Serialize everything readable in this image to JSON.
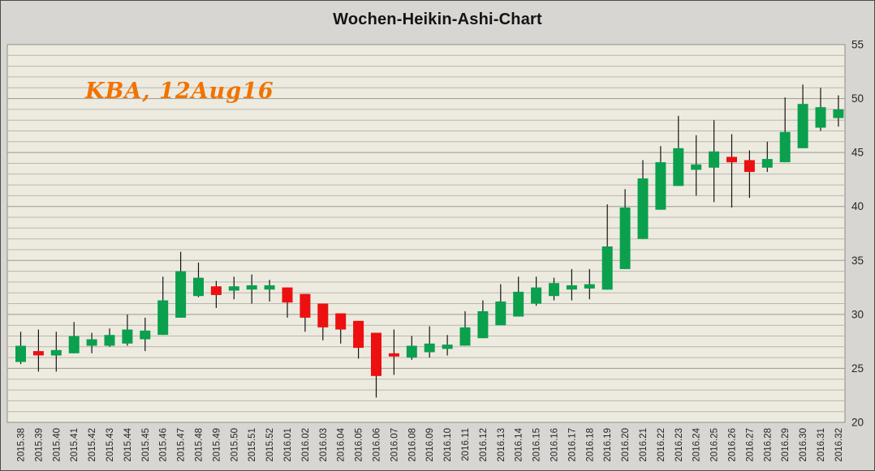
{
  "chart": {
    "title": "Wochen-Heikin-Ashi-Chart",
    "watermark": "KBA, 12Aug16"
  },
  "chart_data": {
    "type": "candlestick",
    "subtype": "weekly-heikin-ashi",
    "title": "Wochen-Heikin-Ashi-Chart",
    "annotation": "KBA, 12Aug16",
    "legend": "none",
    "grid": "horizontal-minor-every-1",
    "y_axis": {
      "position": "right",
      "min": 20,
      "max": 55,
      "major_step": 5,
      "minor_step": 1,
      "ticks": [
        20,
        25,
        30,
        35,
        40,
        45,
        50,
        55
      ]
    },
    "x_categories": [
      "2015.38",
      "2015.39",
      "2015.40",
      "2015.41",
      "2015.42",
      "2015.43",
      "2015.44",
      "2015.45",
      "2015.46",
      "2015.47",
      "2015.48",
      "2015.49",
      "2015.50",
      "2015.51",
      "2015.52",
      "2016.01",
      "2016.02",
      "2016.03",
      "2016.04",
      "2016.05",
      "2016.06",
      "2016.07",
      "2016.08",
      "2016.09",
      "2016.10",
      "2016.11",
      "2016.12",
      "2016.13",
      "2016.14",
      "2016.15",
      "2016.16",
      "2016.17",
      "2016.18",
      "2016.19",
      "2016.20",
      "2016.21",
      "2016.22",
      "2016.23",
      "2016.24",
      "2016.25",
      "2016.26",
      "2016.27",
      "2016.28",
      "2016.29",
      "2016.30",
      "2016.31",
      "2016.32"
    ],
    "candles": [
      {
        "t": "2015.38",
        "o": 25.6,
        "h": 28.4,
        "l": 25.4,
        "c": 27.1
      },
      {
        "t": "2015.39",
        "o": 26.6,
        "h": 28.6,
        "l": 24.7,
        "c": 26.2
      },
      {
        "t": "2015.40",
        "o": 26.2,
        "h": 28.4,
        "l": 24.7,
        "c": 26.7
      },
      {
        "t": "2015.41",
        "o": 26.4,
        "h": 29.3,
        "l": 26.4,
        "c": 28.0
      },
      {
        "t": "2015.42",
        "o": 27.1,
        "h": 28.3,
        "l": 26.4,
        "c": 27.7
      },
      {
        "t": "2015.43",
        "o": 27.1,
        "h": 28.7,
        "l": 27.0,
        "c": 28.1
      },
      {
        "t": "2015.44",
        "o": 27.3,
        "h": 30.0,
        "l": 27.1,
        "c": 28.6
      },
      {
        "t": "2015.45",
        "o": 27.7,
        "h": 29.7,
        "l": 26.6,
        "c": 28.5
      },
      {
        "t": "2015.46",
        "o": 28.1,
        "h": 33.5,
        "l": 28.1,
        "c": 31.3
      },
      {
        "t": "2015.47",
        "o": 29.7,
        "h": 35.8,
        "l": 29.7,
        "c": 34.0
      },
      {
        "t": "2015.48",
        "o": 31.7,
        "h": 34.8,
        "l": 31.6,
        "c": 33.4
      },
      {
        "t": "2015.49",
        "o": 32.6,
        "h": 33.1,
        "l": 30.6,
        "c": 31.8
      },
      {
        "t": "2015.50",
        "o": 32.2,
        "h": 33.5,
        "l": 31.4,
        "c": 32.6
      },
      {
        "t": "2015.51",
        "o": 32.3,
        "h": 33.7,
        "l": 31.0,
        "c": 32.7
      },
      {
        "t": "2015.52",
        "o": 32.3,
        "h": 33.2,
        "l": 31.2,
        "c": 32.7
      },
      {
        "t": "2016.01",
        "o": 32.5,
        "h": 32.5,
        "l": 29.7,
        "c": 31.1
      },
      {
        "t": "2016.02",
        "o": 31.9,
        "h": 31.9,
        "l": 28.4,
        "c": 29.7
      },
      {
        "t": "2016.03",
        "o": 31.0,
        "h": 31.0,
        "l": 27.6,
        "c": 28.8
      },
      {
        "t": "2016.04",
        "o": 30.1,
        "h": 30.1,
        "l": 27.3,
        "c": 28.6
      },
      {
        "t": "2016.05",
        "o": 29.4,
        "h": 29.4,
        "l": 25.9,
        "c": 26.9
      },
      {
        "t": "2016.06",
        "o": 28.3,
        "h": 28.3,
        "l": 22.3,
        "c": 24.3
      },
      {
        "t": "2016.07",
        "o": 26.4,
        "h": 28.6,
        "l": 24.4,
        "c": 26.1
      },
      {
        "t": "2016.08",
        "o": 26.0,
        "h": 28.0,
        "l": 25.8,
        "c": 27.1
      },
      {
        "t": "2016.09",
        "o": 26.5,
        "h": 28.9,
        "l": 26.0,
        "c": 27.3
      },
      {
        "t": "2016.10",
        "o": 26.8,
        "h": 28.1,
        "l": 26.2,
        "c": 27.2
      },
      {
        "t": "2016.11",
        "o": 27.1,
        "h": 30.3,
        "l": 27.1,
        "c": 28.8
      },
      {
        "t": "2016.12",
        "o": 27.8,
        "h": 31.3,
        "l": 27.8,
        "c": 30.3
      },
      {
        "t": "2016.13",
        "o": 29.0,
        "h": 32.8,
        "l": 29.0,
        "c": 31.2
      },
      {
        "t": "2016.14",
        "o": 29.8,
        "h": 33.5,
        "l": 29.8,
        "c": 32.1
      },
      {
        "t": "2016.15",
        "o": 31.0,
        "h": 33.5,
        "l": 30.8,
        "c": 32.5
      },
      {
        "t": "2016.16",
        "o": 31.7,
        "h": 33.4,
        "l": 31.3,
        "c": 32.9
      },
      {
        "t": "2016.17",
        "o": 32.3,
        "h": 34.2,
        "l": 31.3,
        "c": 32.7
      },
      {
        "t": "2016.18",
        "o": 32.4,
        "h": 34.2,
        "l": 31.4,
        "c": 32.8
      },
      {
        "t": "2016.19",
        "o": 32.3,
        "h": 40.2,
        "l": 32.3,
        "c": 36.3
      },
      {
        "t": "2016.20",
        "o": 34.2,
        "h": 41.6,
        "l": 34.2,
        "c": 39.9
      },
      {
        "t": "2016.21",
        "o": 37.0,
        "h": 44.3,
        "l": 37.0,
        "c": 42.6
      },
      {
        "t": "2016.22",
        "o": 39.7,
        "h": 45.6,
        "l": 39.7,
        "c": 44.1
      },
      {
        "t": "2016.23",
        "o": 41.9,
        "h": 48.4,
        "l": 41.9,
        "c": 45.4
      },
      {
        "t": "2016.24",
        "o": 43.4,
        "h": 46.6,
        "l": 41.0,
        "c": 43.9
      },
      {
        "t": "2016.25",
        "o": 43.6,
        "h": 48.0,
        "l": 40.4,
        "c": 45.1
      },
      {
        "t": "2016.26",
        "o": 44.6,
        "h": 46.7,
        "l": 39.9,
        "c": 44.1
      },
      {
        "t": "2016.27",
        "o": 44.3,
        "h": 45.2,
        "l": 40.8,
        "c": 43.2
      },
      {
        "t": "2016.28",
        "o": 43.6,
        "h": 46.0,
        "l": 43.2,
        "c": 44.4
      },
      {
        "t": "2016.29",
        "o": 44.1,
        "h": 50.1,
        "l": 44.1,
        "c": 46.9
      },
      {
        "t": "2016.30",
        "o": 45.4,
        "h": 51.3,
        "l": 45.4,
        "c": 49.5
      },
      {
        "t": "2016.31",
        "o": 47.3,
        "h": 51.0,
        "l": 47.0,
        "c": 49.2
      },
      {
        "t": "2016.32",
        "o": 48.2,
        "h": 50.3,
        "l": 47.4,
        "c": 49.0
      }
    ],
    "colors": {
      "up": "#0aa04d",
      "down": "#ec1010",
      "wick": "#141414",
      "plot_background": "#edebe0",
      "grid_minor": "#bab8ac",
      "grid_major": "#9c9a90",
      "plot_border": "#8f8d83",
      "outer_background": "#d8d6d3",
      "axis_text": "#262626",
      "title_text": "#141414",
      "watermark_text": "#f17300"
    }
  }
}
